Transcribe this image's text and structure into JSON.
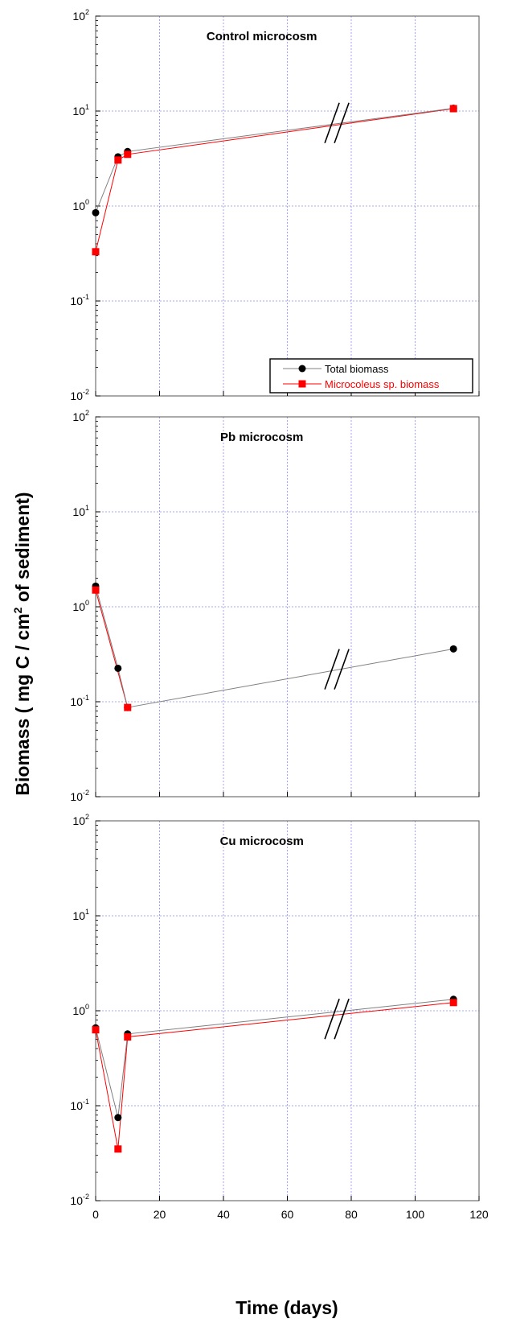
{
  "chart_data": {
    "type": "line",
    "ylabel": "Biomass  ( mg C / cm² of sediment)",
    "ylabel_parts": [
      "Biomass  ( mg C / cm",
      "2",
      " of sediment)"
    ],
    "xlabel": "Time (days)",
    "x_range": [
      0,
      120
    ],
    "x_ticks": [
      0,
      20,
      40,
      60,
      80,
      100,
      120
    ],
    "y_scale": "log",
    "y_range": [
      0.01,
      100
    ],
    "y_ticks": [
      {
        "base": "10",
        "exp": "-2",
        "value": 0.01
      },
      {
        "base": "10",
        "exp": "-1",
        "value": 0.1
      },
      {
        "base": "10",
        "exp": "0",
        "value": 1
      },
      {
        "base": "10",
        "exp": "1",
        "value": 10
      },
      {
        "base": "10",
        "exp": "2",
        "value": 100
      }
    ],
    "grid": true,
    "axis_break": true,
    "legend": {
      "placement": "bottom-right of top panel",
      "entries": [
        {
          "name": "Total biomass",
          "color": "#000000",
          "marker": "circle"
        },
        {
          "name": "Microcoleus sp. biomass",
          "color": "#ff0000",
          "marker": "square"
        }
      ]
    },
    "panels": [
      {
        "title": "Control microcosm",
        "series": [
          {
            "name": "Total biomass",
            "x": [
              0,
              7,
              10,
              112
            ],
            "y": [
              0.85,
              3.3,
              3.75,
              10.7
            ]
          },
          {
            "name": "Microcoleus sp. biomass",
            "x": [
              0,
              7,
              10,
              112
            ],
            "y": [
              0.33,
              3.05,
              3.5,
              10.6
            ]
          }
        ]
      },
      {
        "title": "Pb microcosm",
        "series": [
          {
            "name": "Total biomass",
            "x": [
              0,
              7,
              10,
              112
            ],
            "y": [
              1.65,
              0.225,
              0.087,
              0.36
            ]
          },
          {
            "name": "Microcoleus sp. biomass",
            "x": [
              0,
              10
            ],
            "y": [
              1.5,
              0.087
            ]
          }
        ]
      },
      {
        "title": "Cu microcosm",
        "series": [
          {
            "name": "Total biomass",
            "x": [
              0,
              7,
              10,
              112
            ],
            "y": [
              0.66,
              0.075,
              0.57,
              1.32
            ]
          },
          {
            "name": "Microcoleus sp. biomass",
            "x": [
              0,
              7,
              10,
              112
            ],
            "y": [
              0.63,
              0.035,
              0.53,
              1.22
            ]
          }
        ]
      }
    ]
  },
  "colors": {
    "total": "#000000",
    "total_line": "#808080",
    "microcoleus": "#ff0000",
    "grid": "#8c8cf0"
  }
}
